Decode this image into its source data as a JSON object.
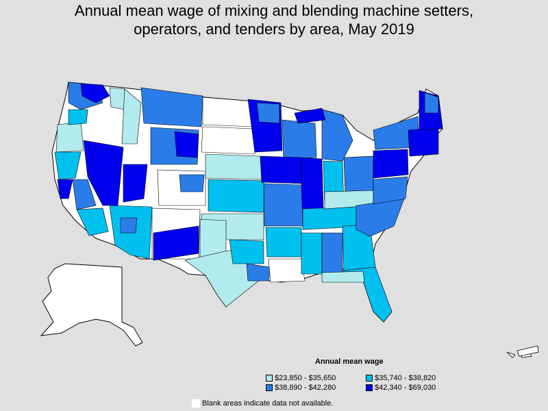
{
  "title_line1": "Annual mean wage of mixing and blending machine setters,",
  "title_line2": "operators, and tenders by area, May 2019",
  "legend": {
    "title": "Annual mean wage",
    "items": [
      {
        "label": "$23,850 - $35,650",
        "color": "#b2ebee"
      },
      {
        "label": "$35,740 - $38,820",
        "color": "#00c0f0"
      },
      {
        "label": "$38,890 - $42,280",
        "color": "#2a7de8"
      },
      {
        "label": "$42,340 - $69,030",
        "color": "#0000ee"
      }
    ]
  },
  "blank_note": "Blank areas indicate data not available.",
  "colors": {
    "background": "#e0e0e0",
    "blank": "#ffffff",
    "tier1": "#b2ebee",
    "tier2": "#00c0f0",
    "tier3": "#2a7de8",
    "tier4": "#0000ee",
    "border": "#000000"
  }
}
